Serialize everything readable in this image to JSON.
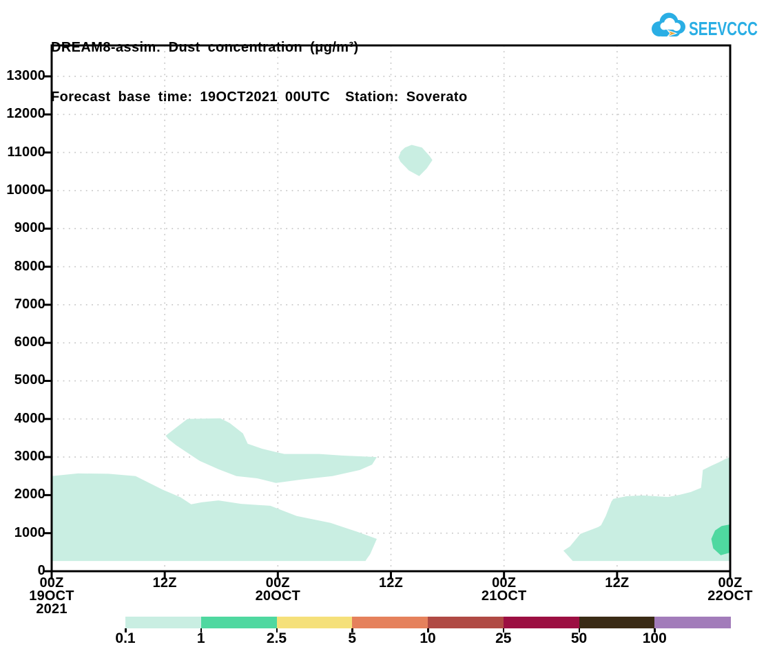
{
  "header": {
    "title": "DREAM8-assim: Dust concentration (μg/m³)",
    "subtitle": "Forecast base time: 19OCT2021 00UTC  Station: Soverato"
  },
  "logo": {
    "text": "SEEVCCC",
    "brand_color": "#2aaee4",
    "arrow_color": "#e9a63a"
  },
  "chart_data": {
    "type": "area",
    "subtype": "time-height-filled-contour",
    "title": "DREAM8-assim: Dust concentration (μg/m³)",
    "subtitle": "Forecast base time: 19OCT2021 00UTC  Station: Soverato",
    "model": "DREAM8-assim",
    "station": "Soverato",
    "base_time": "19OCT2021 00UTC",
    "units": "μg/m³",
    "grid": {
      "show": true,
      "style": "dotted",
      "color": "#c6c6c6"
    },
    "x_axis": {
      "unit": "forecast hours from 2021-10-19 00Z",
      "range_hours": [
        0,
        72
      ],
      "ticks": [
        {
          "hour": 0,
          "lines": [
            "00Z",
            "19OCT",
            "2021"
          ]
        },
        {
          "hour": 12,
          "lines": [
            "12Z"
          ]
        },
        {
          "hour": 24,
          "lines": [
            "00Z",
            "20OCT"
          ]
        },
        {
          "hour": 36,
          "lines": [
            "12Z"
          ]
        },
        {
          "hour": 48,
          "lines": [
            "00Z",
            "21OCT"
          ]
        },
        {
          "hour": 60,
          "lines": [
            "12Z"
          ]
        },
        {
          "hour": 72,
          "lines": [
            "00Z",
            "22OCT"
          ]
        }
      ]
    },
    "y_axis": {
      "unit": "m",
      "range": [
        0,
        13813
      ],
      "tick_min": 0,
      "tick_max": 13000,
      "tick_step": 1000
    },
    "legend": {
      "position": "bottom",
      "labels": [
        "0.1",
        "1",
        "2.5",
        "5",
        "10",
        "25",
        "50",
        "100"
      ],
      "colors": [
        "#c9eee2",
        "#4fd8a0",
        "#f5e07a",
        "#e5815c",
        "#b04a44",
        "#9c0f42",
        "#3a2b15",
        "#a27cba"
      ]
    },
    "regions": [
      {
        "name": "surface-layer-day1",
        "level": "0.1-1",
        "color_index": 0,
        "points": [
          [
            0,
            2500
          ],
          [
            2.8,
            2570
          ],
          [
            6,
            2560
          ],
          [
            8.9,
            2500
          ],
          [
            10.1,
            2350
          ],
          [
            11.8,
            2140
          ],
          [
            13.7,
            1940
          ],
          [
            14.8,
            1760
          ],
          [
            15.9,
            1810
          ],
          [
            17.7,
            1860
          ],
          [
            20.1,
            1770
          ],
          [
            23.2,
            1720
          ],
          [
            26,
            1450
          ],
          [
            29.6,
            1270
          ],
          [
            32.5,
            1030
          ],
          [
            34.5,
            850
          ],
          [
            33.8,
            450
          ],
          [
            33.4,
            310
          ],
          [
            33.3,
            270
          ],
          [
            0,
            270
          ]
        ]
      },
      {
        "name": "elevated-band-day1",
        "level": "0.1-1",
        "color_index": 0,
        "points": [
          [
            12.1,
            3560
          ],
          [
            14.4,
            4000
          ],
          [
            17.9,
            4020
          ],
          [
            18.9,
            3890
          ],
          [
            20.3,
            3620
          ],
          [
            20.8,
            3350
          ],
          [
            22.3,
            3220
          ],
          [
            23.8,
            3130
          ],
          [
            24.7,
            3080
          ],
          [
            28.4,
            3080
          ],
          [
            30.8,
            3040
          ],
          [
            34.5,
            3000
          ],
          [
            34,
            2800
          ],
          [
            32.7,
            2660
          ],
          [
            29.8,
            2500
          ],
          [
            26.5,
            2410
          ],
          [
            23.8,
            2320
          ],
          [
            21.8,
            2440
          ],
          [
            19.6,
            2500
          ],
          [
            17.7,
            2680
          ],
          [
            15.7,
            2900
          ],
          [
            14.3,
            3130
          ],
          [
            13.2,
            3310
          ],
          [
            12.4,
            3470
          ]
        ]
      },
      {
        "name": "upper-level-patch",
        "level": "0.1-1",
        "color_index": 0,
        "points": [
          [
            37.5,
            11130
          ],
          [
            38.2,
            11200
          ],
          [
            39.3,
            11130
          ],
          [
            40.1,
            10910
          ],
          [
            40.4,
            10800
          ],
          [
            39.8,
            10580
          ],
          [
            39,
            10380
          ],
          [
            37.9,
            10530
          ],
          [
            37,
            10760
          ],
          [
            36.8,
            10870
          ],
          [
            37.1,
            11040
          ]
        ]
      },
      {
        "name": "surface-layer-day3",
        "level": "0.1-1",
        "color_index": 0,
        "points": [
          [
            54.3,
            540
          ],
          [
            55,
            650
          ],
          [
            56.1,
            980
          ],
          [
            58,
            1160
          ],
          [
            58.3,
            1210
          ],
          [
            58.8,
            1450
          ],
          [
            59.4,
            1830
          ],
          [
            59.6,
            1900
          ],
          [
            61,
            1970
          ],
          [
            62.7,
            1990
          ],
          [
            65.4,
            1950
          ],
          [
            66.7,
            2010
          ],
          [
            67.8,
            2080
          ],
          [
            68.9,
            2190
          ],
          [
            69,
            2410
          ],
          [
            69.1,
            2660
          ],
          [
            70,
            2770
          ],
          [
            70.8,
            2860
          ],
          [
            71.5,
            2950
          ],
          [
            72,
            3000
          ],
          [
            72,
            270
          ],
          [
            55.3,
            270
          ]
        ]
      },
      {
        "name": "surface-core-day3",
        "level": "1-2.5",
        "color_index": 1,
        "points": [
          [
            70,
            850
          ],
          [
            70.4,
            1070
          ],
          [
            71.1,
            1190
          ],
          [
            72,
            1230
          ],
          [
            72,
            490
          ],
          [
            71,
            420
          ],
          [
            70.2,
            600
          ]
        ]
      }
    ]
  },
  "layout_note": ""
}
